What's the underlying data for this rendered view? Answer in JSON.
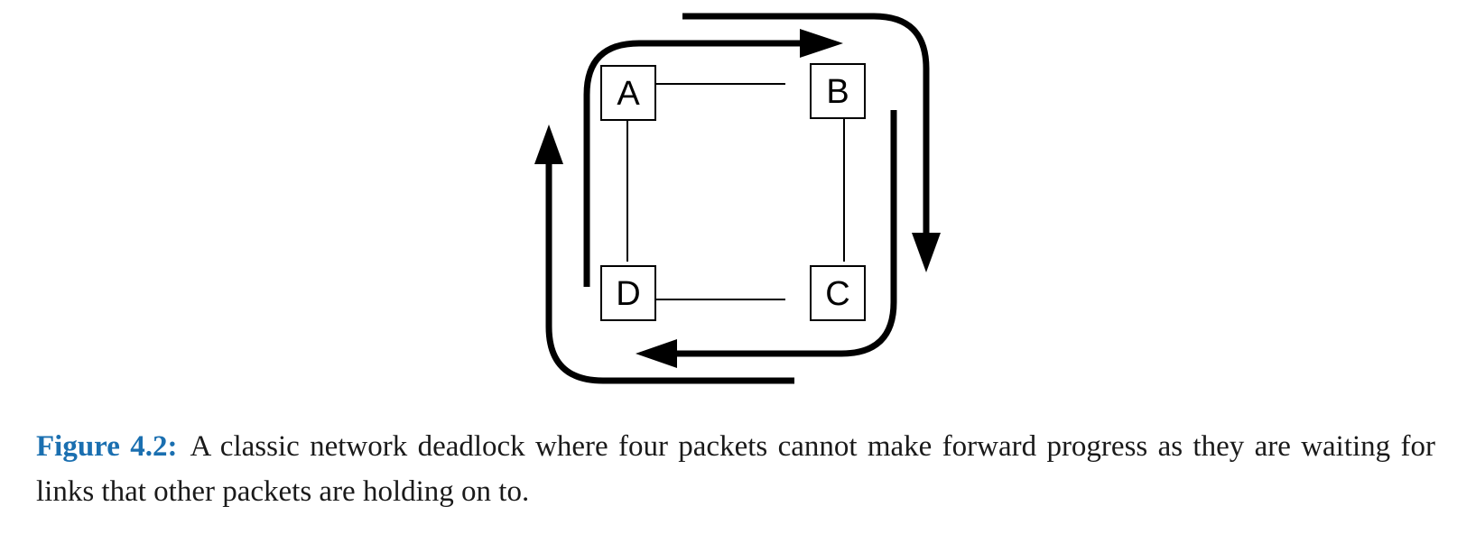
{
  "diagram": {
    "nodes": [
      {
        "id": "A",
        "label": "A"
      },
      {
        "id": "B",
        "label": "B"
      },
      {
        "id": "C",
        "label": "C"
      },
      {
        "id": "D",
        "label": "D"
      }
    ],
    "links": [
      {
        "from": "A",
        "to": "B"
      },
      {
        "from": "B",
        "to": "C"
      },
      {
        "from": "C",
        "to": "D"
      },
      {
        "from": "D",
        "to": "A"
      }
    ],
    "packet_flow": {
      "direction": "clockwise",
      "count": 4
    }
  },
  "caption": {
    "label": "Figure 4.2:",
    "text": "A classic network deadlock where four packets cannot make forward progress as they are waiting for links that other packets are holding on to."
  },
  "colors": {
    "caption_label": "#1a6fb0",
    "arrow": "#000000"
  }
}
